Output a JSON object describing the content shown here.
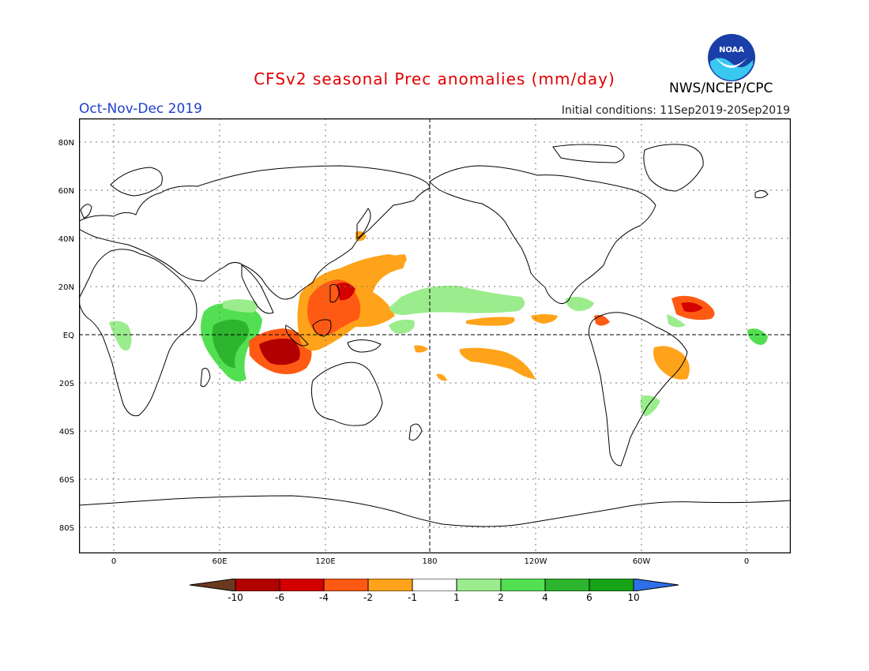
{
  "title": "CFSv2 seasonal Prec anomalies (mm/day)",
  "season": "Oct-Nov-Dec 2019",
  "initial_conditions": "Initial conditions: 11Sep2019-20Sep2019",
  "agency": "NWS/NCEP/CPC",
  "logo_text": "NOAA",
  "colors": {
    "title": "#e00000",
    "season": "#1f3fd0",
    "coast": "#000000",
    "grid": "#777777"
  },
  "map": {
    "lat_labels": [
      "80N",
      "60N",
      "40N",
      "20N",
      "EQ",
      "20S",
      "40S",
      "60S",
      "80S"
    ],
    "lon_labels": [
      "0",
      "60E",
      "120E",
      "180",
      "120W",
      "60W",
      "0"
    ]
  },
  "colorbar": {
    "labels": [
      "-10",
      "-6",
      "-4",
      "-2",
      "-1",
      "1",
      "2",
      "4",
      "6",
      "10"
    ],
    "colors": [
      "#6b3a1e",
      "#b30000",
      "#d40000",
      "#ff5a14",
      "#ffa31a",
      "#ffffff",
      "#9bec8c",
      "#52e052",
      "#2db52d",
      "#17a317",
      "#2f6fe8"
    ]
  }
}
